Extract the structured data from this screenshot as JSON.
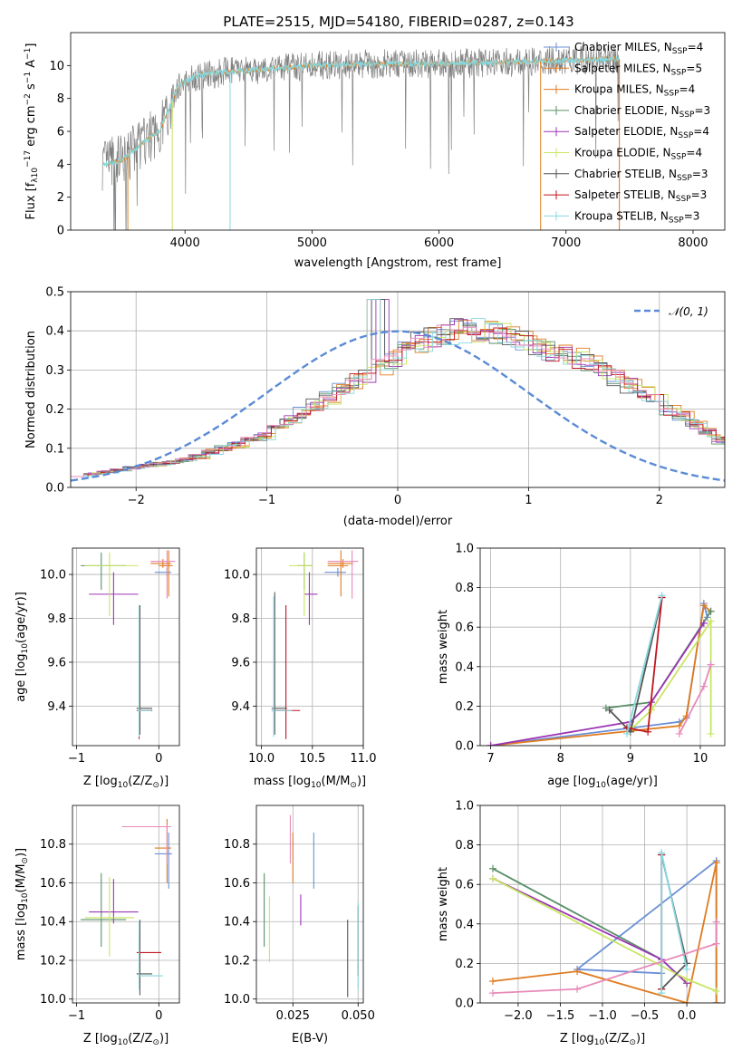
{
  "figure": {
    "title": "PLATE=2515, MJD=54180, FIBERID=0287, z=0.143"
  },
  "colors": {
    "Chabrier MILES": "#6b8fd6",
    "Salpeter MILES": "#e07b1f",
    "Kroupa MILES": "#e07b1f",
    "Chabrier ELODIE": "#5a8f68",
    "Salpeter ELODIE": "#9c36b5",
    "Kroupa ELODIE": "#c8e660",
    "Chabrier STELIB": "#555555",
    "Salpeter STELIB": "#c0161f",
    "Kroupa STELIB": "#86d8e0",
    "pink": "#e88ab8",
    "data_gray": "#808080",
    "gaussian": "#5b8bd6",
    "grid": "#b0b0b0"
  },
  "chart_data": [
    {
      "id": "spectrum",
      "type": "line",
      "title": "PLATE=2515, MJD=54180, FIBERID=0287, z=0.143",
      "xlabel": "wavelength [Angstrom, rest frame]",
      "ylabel_parts": [
        "Flux [f",
        "λ",
        "10",
        "−17",
        " erg cm",
        "−2",
        " s",
        "−1",
        " A",
        "−1",
        "]"
      ],
      "xlim": [
        3100,
        8250
      ],
      "ylim": [
        0,
        12
      ],
      "xticks": [
        4000,
        5000,
        6000,
        7000,
        8000
      ],
      "yticks": [
        0,
        2,
        4,
        6,
        8,
        10
      ],
      "grid": false,
      "legend_position": "top-right",
      "continuum_anchors": {
        "x": [
          3350,
          3500,
          3700,
          3800,
          3950,
          4100,
          4300,
          4700,
          5000,
          5500,
          6000,
          6500,
          7000,
          7400
        ],
        "y": [
          4.0,
          4.2,
          5.5,
          6.0,
          8.8,
          9.4,
          9.6,
          9.8,
          10.0,
          10.1,
          10.1,
          10.2,
          10.3,
          10.4
        ]
      },
      "legend": [
        {
          "label": "Chabrier MILES, N",
          "sub": "SSP",
          "value": "=4",
          "color_key": "Chabrier MILES"
        },
        {
          "label": "Salpeter MILES, N",
          "sub": "SSP",
          "value": "=5",
          "color_key": "Salpeter MILES"
        },
        {
          "label": "Kroupa MILES, N",
          "sub": "SSP",
          "value": "=4",
          "color_key": "Kroupa MILES"
        },
        {
          "label": "Chabrier ELODIE, N",
          "sub": "SSP",
          "value": "=3",
          "color_key": "Chabrier ELODIE"
        },
        {
          "label": "Salpeter ELODIE, N",
          "sub": "SSP",
          "value": "=4",
          "color_key": "Salpeter ELODIE"
        },
        {
          "label": "Kroupa ELODIE, N",
          "sub": "SSP",
          "value": "=4",
          "color_key": "Kroupa ELODIE"
        },
        {
          "label": "Chabrier STELIB, N",
          "sub": "SSP",
          "value": "=3",
          "color_key": "Chabrier STELIB"
        },
        {
          "label": "Salpeter STELIB, N",
          "sub": "SSP",
          "value": "=3",
          "color_key": "Salpeter STELIB"
        },
        {
          "label": "Kroupa STELIB, N",
          "sub": "SSP",
          "value": "=3",
          "color_key": "Kroupa STELIB"
        }
      ]
    },
    {
      "id": "residuals",
      "type": "area",
      "xlabel": "(data-model)/error",
      "ylabel": "Normed distribution",
      "xlim": [
        -2.5,
        2.5
      ],
      "ylim": [
        0,
        0.5
      ],
      "xticks": [
        -2,
        -1,
        0,
        1,
        2
      ],
      "yticks": [
        0.0,
        0.1,
        0.2,
        0.3,
        0.4,
        0.5
      ],
      "grid": true,
      "legend_position": "top-right",
      "bin_width": 0.1,
      "bin_start": -2.5,
      "base_histogram": [
        0.03,
        0.035,
        0.04,
        0.045,
        0.05,
        0.055,
        0.06,
        0.065,
        0.07,
        0.08,
        0.09,
        0.1,
        0.11,
        0.12,
        0.13,
        0.15,
        0.17,
        0.19,
        0.21,
        0.23,
        0.25,
        0.27,
        0.29,
        0.31,
        0.33,
        0.35,
        0.37,
        0.38,
        0.39,
        0.4,
        0.4,
        0.4,
        0.39,
        0.38,
        0.37,
        0.36,
        0.35,
        0.34,
        0.33,
        0.32,
        0.3,
        0.28,
        0.26,
        0.24,
        0.22,
        0.2,
        0.18,
        0.16,
        0.14,
        0.12,
        0.11,
        0.1,
        0.09,
        0.08,
        0.07,
        0.06,
        0.055,
        0.05,
        0.045,
        0.04
      ],
      "gaussian_label": "𝒩(0, 1)"
    },
    {
      "id": "z-age",
      "type": "scatter",
      "xlabel_parts": [
        "Z [log",
        "10",
        "(Z/Z",
        "⊙",
        ")]"
      ],
      "ylabel_parts": [
        "age  [log",
        "10",
        "(age/yr)]"
      ],
      "xlim": [
        -1.05,
        0.25
      ],
      "ylim": [
        9.22,
        10.12
      ],
      "xticks": [
        -1,
        0
      ],
      "yticks": [
        9.4,
        9.6,
        9.8,
        10.0
      ],
      "grid": true,
      "errorbars": [
        {
          "c": "Chabrier MILES",
          "x": 0.1,
          "y": 10.01,
          "xlo": -0.05,
          "xhi": 0.15,
          "ylo": 9.99,
          "yhi": 10.03
        },
        {
          "c": "Salpeter MILES",
          "x": 0.05,
          "y": 10.05,
          "xlo": -0.1,
          "xhi": 0.15,
          "ylo": 10.03,
          "yhi": 10.07
        },
        {
          "c": "Kroupa MILES",
          "x": 0.12,
          "y": 10.04,
          "xlo": 0.0,
          "xhi": 0.17,
          "ylo": 9.9,
          "yhi": 10.11
        },
        {
          "c": "Chabrier ELODIE",
          "x": -0.7,
          "y": 10.04,
          "xlo": -0.95,
          "xhi": -0.4,
          "ylo": 9.93,
          "yhi": 10.1
        },
        {
          "c": "Salpeter ELODIE",
          "x": -0.55,
          "y": 9.91,
          "xlo": -0.85,
          "xhi": -0.25,
          "ylo": 9.77,
          "yhi": 10.01
        },
        {
          "c": "Kroupa ELODIE",
          "x": -0.6,
          "y": 10.04,
          "xlo": -0.9,
          "xhi": -0.25,
          "ylo": 9.81,
          "yhi": 10.1
        },
        {
          "c": "Chabrier STELIB",
          "x": -0.23,
          "y": 9.39,
          "xlo": -0.27,
          "xhi": -0.08,
          "ylo": 9.27,
          "yhi": 9.86
        },
        {
          "c": "Salpeter STELIB",
          "x": -0.24,
          "y": 9.38,
          "xlo": -0.27,
          "xhi": -0.08,
          "ylo": 9.25,
          "yhi": 9.86
        },
        {
          "c": "Kroupa STELIB",
          "x": -0.24,
          "y": 9.38,
          "xlo": -0.26,
          "xhi": -0.09,
          "ylo": 9.26,
          "yhi": 9.86
        },
        {
          "c": "pink",
          "x": 0.1,
          "y": 10.06,
          "xlo": -0.1,
          "xhi": 0.2,
          "ylo": 9.89,
          "yhi": 10.11
        }
      ]
    },
    {
      "id": "mass-age",
      "type": "scatter",
      "xlabel_parts": [
        "mass [log",
        "10",
        "(M/M",
        "⊙",
        ")]"
      ],
      "xlim": [
        9.95,
        11.0
      ],
      "ylim": [
        9.22,
        10.12
      ],
      "xticks": [
        10.0,
        10.5,
        11.0
      ],
      "yticks": [
        9.4,
        9.6,
        9.8,
        10.0
      ],
      "grid": true,
      "errorbars": [
        {
          "c": "Chabrier MILES",
          "x": 10.75,
          "y": 10.01,
          "xlo": 10.62,
          "xhi": 10.83,
          "ylo": 9.99,
          "yhi": 10.03
        },
        {
          "c": "Salpeter MILES",
          "x": 10.8,
          "y": 10.05,
          "xlo": 10.65,
          "xhi": 10.9,
          "ylo": 10.03,
          "yhi": 10.07
        },
        {
          "c": "Kroupa MILES",
          "x": 10.78,
          "y": 10.04,
          "xlo": 10.65,
          "xhi": 10.85,
          "ylo": 9.9,
          "yhi": 10.11
        },
        {
          "c": "Chabrier ELODIE",
          "x": 10.42,
          "y": 10.04,
          "xlo": 10.35,
          "xhi": 10.5,
          "ylo": 9.93,
          "yhi": 10.1
        },
        {
          "c": "Salpeter ELODIE",
          "x": 10.47,
          "y": 9.91,
          "xlo": 10.42,
          "xhi": 10.55,
          "ylo": 9.77,
          "yhi": 10.01
        },
        {
          "c": "Kroupa ELODIE",
          "x": 10.42,
          "y": 10.04,
          "xlo": 10.27,
          "xhi": 10.5,
          "ylo": 9.81,
          "yhi": 10.1
        },
        {
          "c": "Chabrier STELIB",
          "x": 10.13,
          "y": 9.39,
          "xlo": 10.1,
          "xhi": 10.25,
          "ylo": 9.27,
          "yhi": 9.92
        },
        {
          "c": "Salpeter STELIB",
          "x": 10.24,
          "y": 9.38,
          "xlo": 10.1,
          "xhi": 10.38,
          "ylo": 9.25,
          "yhi": 9.86
        },
        {
          "c": "Kroupa STELIB",
          "x": 10.12,
          "y": 9.38,
          "xlo": 10.1,
          "xhi": 10.3,
          "ylo": 9.26,
          "yhi": 9.9
        },
        {
          "c": "pink",
          "x": 10.89,
          "y": 10.06,
          "xlo": 10.65,
          "xhi": 10.95,
          "ylo": 9.89,
          "yhi": 10.11
        }
      ]
    },
    {
      "id": "age-weight",
      "type": "line",
      "xlabel_parts": [
        "age  [log",
        "10",
        "(age/yr)]"
      ],
      "ylabel": "mass weight",
      "xlim": [
        6.85,
        10.35
      ],
      "ylim": [
        0,
        1.0
      ],
      "xticks": [
        7,
        8,
        9,
        10
      ],
      "yticks": [
        0.0,
        0.2,
        0.4,
        0.6,
        0.8,
        1.0
      ],
      "grid": true,
      "series": [
        {
          "c": "Chabrier MILES",
          "x": [
            7.0,
            9.7,
            9.8,
            10.05,
            10.1
          ],
          "y": [
            0.0,
            0.12,
            0.14,
            0.72,
            0.65
          ]
        },
        {
          "c": "Salpeter MILES",
          "x": [
            7.0,
            9.7,
            9.8,
            10.05,
            10.15
          ],
          "y": [
            0.0,
            0.1,
            0.15,
            0.71,
            0.68
          ]
        },
        {
          "c": "Chabrier ELODIE",
          "x": [
            8.65,
            9.3,
            10.15
          ],
          "y": [
            0.19,
            0.22,
            0.68
          ]
        },
        {
          "c": "Salpeter ELODIE",
          "x": [
            7.0,
            9.0,
            9.3,
            10.05
          ],
          "y": [
            0.0,
            0.12,
            0.22,
            0.62
          ]
        },
        {
          "c": "Kroupa ELODIE",
          "x": [
            9.0,
            9.3,
            10.15,
            10.15
          ],
          "y": [
            0.08,
            0.18,
            0.63,
            0.06
          ]
        },
        {
          "c": "Chabrier STELIB",
          "x": [
            8.7,
            9.0,
            9.45
          ],
          "y": [
            0.18,
            0.07,
            0.75
          ]
        },
        {
          "c": "Salpeter STELIB",
          "x": [
            8.95,
            9.25,
            9.45
          ],
          "y": [
            0.09,
            0.07,
            0.75
          ]
        },
        {
          "c": "Kroupa STELIB",
          "x": [
            8.95,
            9.45
          ],
          "y": [
            0.06,
            0.76
          ]
        },
        {
          "c": "pink",
          "x": [
            9.7,
            10.05,
            10.15
          ],
          "y": [
            0.06,
            0.3,
            0.41
          ]
        }
      ]
    },
    {
      "id": "z-mass",
      "type": "scatter",
      "xlabel_parts": [
        "Z [log",
        "10",
        "(Z/Z",
        "⊙",
        ")]"
      ],
      "ylabel_parts": [
        "mass [log",
        "10",
        "(M/M",
        "⊙",
        ")]"
      ],
      "xlim": [
        -1.05,
        0.25
      ],
      "ylim": [
        9.98,
        11.0
      ],
      "xticks": [
        -1,
        0
      ],
      "yticks": [
        10.0,
        10.2,
        10.4,
        10.6,
        10.8
      ],
      "grid": true,
      "errorbars": [
        {
          "c": "Chabrier MILES",
          "x": 0.12,
          "y": 10.75,
          "xlo": -0.05,
          "xhi": 0.16,
          "ylo": 10.57,
          "yhi": 10.86
        },
        {
          "c": "Salpeter MILES",
          "x": 0.1,
          "y": 10.78,
          "xlo": -0.05,
          "xhi": 0.15,
          "ylo": 10.6,
          "yhi": 10.93
        },
        {
          "c": "Chabrier ELODIE",
          "x": -0.7,
          "y": 10.41,
          "xlo": -0.95,
          "xhi": -0.4,
          "ylo": 10.27,
          "yhi": 10.65
        },
        {
          "c": "Salpeter ELODIE",
          "x": -0.55,
          "y": 10.45,
          "xlo": -0.85,
          "xhi": -0.25,
          "ylo": 10.39,
          "yhi": 10.62
        },
        {
          "c": "Kroupa ELODIE",
          "x": -0.6,
          "y": 10.42,
          "xlo": -0.9,
          "xhi": -0.3,
          "ylo": 10.22,
          "yhi": 10.63
        },
        {
          "c": "Chabrier STELIB",
          "x": -0.23,
          "y": 10.13,
          "xlo": -0.27,
          "xhi": -0.08,
          "ylo": 10.02,
          "yhi": 10.41
        },
        {
          "c": "Salpeter STELIB",
          "x": -0.24,
          "y": 10.24,
          "xlo": -0.27,
          "xhi": 0.03,
          "ylo": 10.08,
          "yhi": 10.35
        },
        {
          "c": "Kroupa STELIB",
          "x": -0.24,
          "y": 10.12,
          "xlo": -0.25,
          "xhi": 0.05,
          "ylo": 10.05,
          "yhi": 10.4
        },
        {
          "c": "pink",
          "x": 0.1,
          "y": 10.89,
          "xlo": -0.45,
          "xhi": 0.15,
          "ylo": 10.7,
          "yhi": 10.9
        }
      ]
    },
    {
      "id": "ebv-mass",
      "type": "scatter",
      "xlabel": "E(B-V)",
      "xlim": [
        0.011,
        0.052
      ],
      "ylim": [
        9.98,
        11.0
      ],
      "xticks": [
        0.025,
        0.05
      ],
      "yticks": [
        10.0,
        10.2,
        10.4,
        10.6,
        10.8
      ],
      "grid": true,
      "errorbars": [
        {
          "c": "Chabrier MILES",
          "x": 0.033,
          "y": 10.71,
          "ylo": 10.57,
          "yhi": 10.86
        },
        {
          "c": "Salpeter MILES",
          "x": 0.025,
          "y": 10.73,
          "ylo": 10.6,
          "yhi": 10.86
        },
        {
          "c": "Chabrier ELODIE",
          "x": 0.014,
          "y": 10.45,
          "ylo": 10.27,
          "yhi": 10.65
        },
        {
          "c": "Salpeter ELODIE",
          "x": 0.028,
          "y": 10.46,
          "ylo": 10.38,
          "yhi": 10.54
        },
        {
          "c": "Kroupa ELODIE",
          "x": 0.016,
          "y": 10.42,
          "ylo": 10.19,
          "yhi": 10.53
        },
        {
          "c": "Chabrier STELIB",
          "x": 0.046,
          "y": 10.21,
          "ylo": 10.01,
          "yhi": 10.41
        },
        {
          "c": "Salpeter STELIB",
          "x": 0.05,
          "y": 10.3,
          "ylo": 10.12,
          "yhi": 10.48
        },
        {
          "c": "Kroupa STELIB",
          "x": 0.05,
          "y": 10.27,
          "ylo": 10.05,
          "yhi": 10.5
        },
        {
          "c": "pink",
          "x": 0.024,
          "y": 10.82,
          "ylo": 10.7,
          "yhi": 10.95
        }
      ]
    },
    {
      "id": "z-weight",
      "type": "line",
      "xlabel_parts": [
        "Z [log",
        "10",
        "(Z/Z",
        "⊙",
        ")]"
      ],
      "ylabel": "mass weight",
      "xlim": [
        -2.45,
        0.45
      ],
      "ylim": [
        0,
        1.0
      ],
      "xticks": [
        -2.0,
        -1.5,
        -1.0,
        -0.5,
        0.0
      ],
      "yticks": [
        0.0,
        0.2,
        0.4,
        0.6,
        0.8,
        1.0
      ],
      "grid": true,
      "series": [
        {
          "c": "Chabrier MILES",
          "x": [
            -0.3,
            -1.3,
            0.35,
            0.35
          ],
          "y": [
            0.15,
            0.17,
            0.72,
            0.0
          ]
        },
        {
          "c": "Salpeter MILES",
          "x": [
            -2.3,
            -1.3,
            0.0,
            0.35,
            0.35
          ],
          "y": [
            0.11,
            0.16,
            0.0,
            0.71,
            0.0
          ]
        },
        {
          "c": "Chabrier ELODIE",
          "x": [
            -2.3,
            -0.3,
            0.0
          ],
          "y": [
            0.68,
            0.22,
            0.1
          ]
        },
        {
          "c": "Salpeter ELODIE",
          "x": [
            -2.3,
            -0.3,
            0.0
          ],
          "y": [
            0.63,
            0.22,
            0.1
          ]
        },
        {
          "c": "Kroupa ELODIE",
          "x": [
            -2.3,
            0.0,
            0.35
          ],
          "y": [
            0.63,
            0.12,
            0.06
          ]
        },
        {
          "c": "Chabrier STELIB",
          "x": [
            -0.3,
            0.0,
            -0.3
          ],
          "y": [
            0.07,
            0.2,
            0.75
          ]
        },
        {
          "c": "Salpeter STELIB",
          "x": [
            -0.3,
            -0.3
          ],
          "y": [
            0.07,
            0.75
          ]
        },
        {
          "c": "Kroupa STELIB",
          "x": [
            -0.3,
            -0.3,
            0.0
          ],
          "y": [
            0.05,
            0.76,
            0.17
          ]
        },
        {
          "c": "pink",
          "x": [
            -2.3,
            -1.3,
            0.35,
            0.35
          ],
          "y": [
            0.05,
            0.07,
            0.3,
            0.41
          ]
        }
      ]
    }
  ]
}
